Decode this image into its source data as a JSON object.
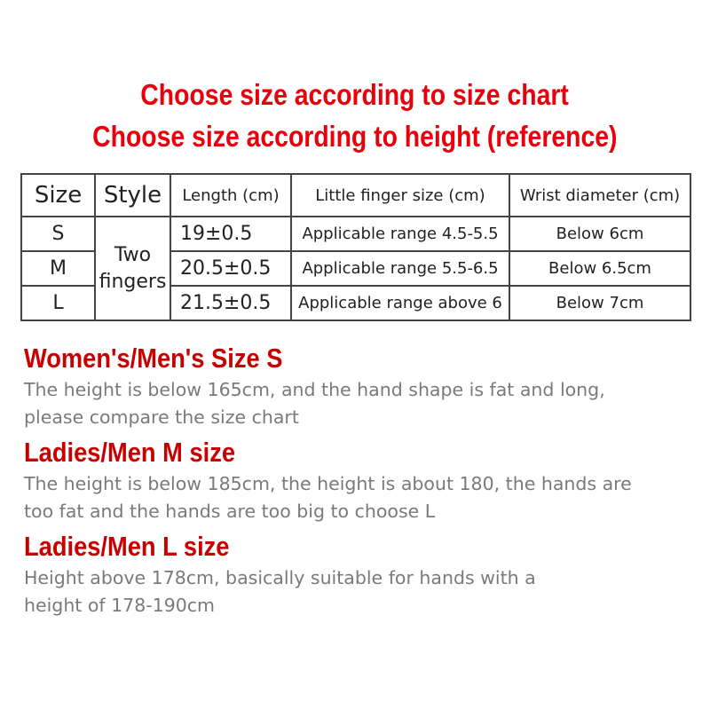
{
  "titles": [
    "Choose size according to size chart",
    "Choose size according to height (reference)"
  ],
  "table": {
    "headers": [
      "Size",
      "Style",
      "Length (cm)",
      "Little finger size (cm)",
      "Wrist diameter (cm)"
    ],
    "style": [
      "Two",
      "fingers"
    ],
    "rows": [
      {
        "size": "S",
        "length": "19±0.5",
        "finger": "Applicable range 4.5-5.5",
        "wrist": "Below 6cm"
      },
      {
        "size": "M",
        "length": "20.5±0.5",
        "finger": "Applicable range 5.5-6.5",
        "wrist": "Below 6.5cm"
      },
      {
        "size": "L",
        "length": "21.5±0.5",
        "finger": "Applicable range above 6",
        "wrist": "Below 7cm"
      }
    ]
  },
  "sections": [
    {
      "heading": "Women's/Men's Size S",
      "lines": [
        "The height is below 165cm, and the hand shape is fat and long,",
        "please compare the size chart"
      ]
    },
    {
      "heading": "Ladies/Men M size",
      "lines": [
        "The height is below 185cm, the height is about 180, the hands are",
        "too fat and the hands are too big to choose L"
      ]
    },
    {
      "heading": "Ladies/Men L size",
      "lines": [
        "Height above 178cm, basically suitable for hands with a",
        "height of 178-190cm"
      ]
    }
  ],
  "colors": {
    "title": "#e8000b",
    "heading": "#c80000",
    "body": "#7a7a7a"
  }
}
